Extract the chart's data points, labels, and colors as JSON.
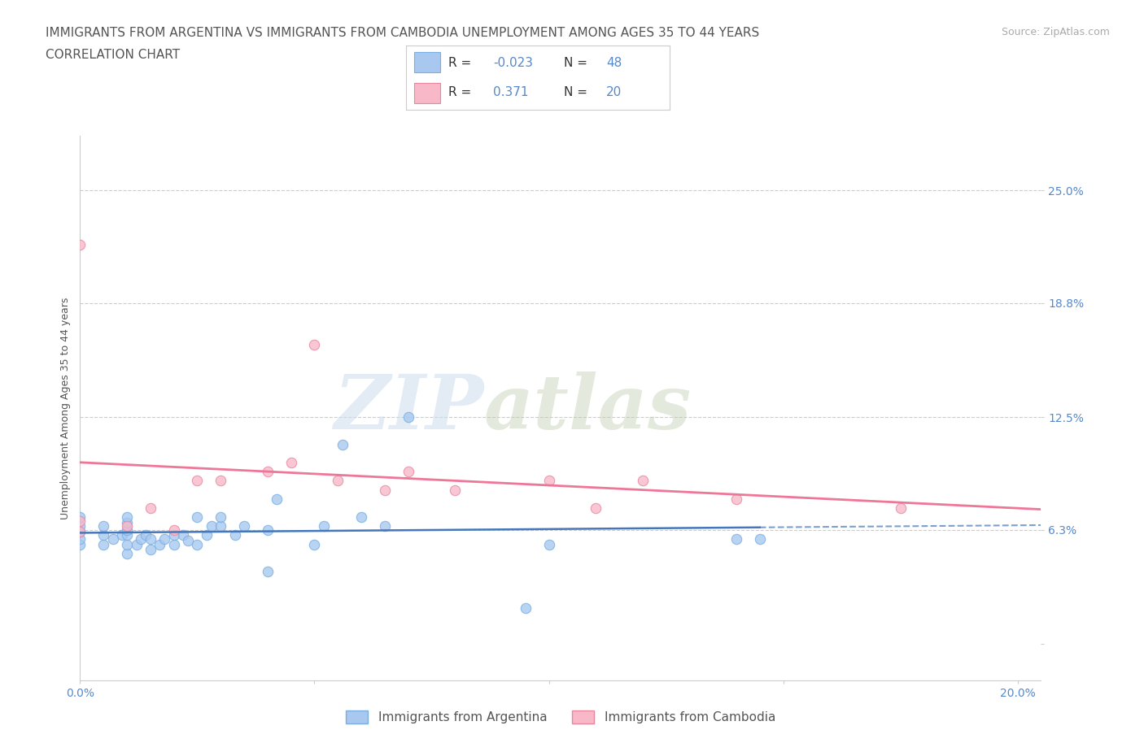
{
  "title_line1": "IMMIGRANTS FROM ARGENTINA VS IMMIGRANTS FROM CAMBODIA UNEMPLOYMENT AMONG AGES 35 TO 44 YEARS",
  "title_line2": "CORRELATION CHART",
  "source": "Source: ZipAtlas.com",
  "ylabel": "Unemployment Among Ages 35 to 44 years",
  "xlim": [
    0.0,
    0.205
  ],
  "ylim": [
    -0.02,
    0.28
  ],
  "yticks": [
    0.0,
    0.063,
    0.125,
    0.188,
    0.25
  ],
  "ytick_labels": [
    "",
    "6.3%",
    "12.5%",
    "18.8%",
    "25.0%"
  ],
  "xticks": [
    0.0,
    0.05,
    0.1,
    0.15,
    0.2
  ],
  "xtick_labels": [
    "0.0%",
    "",
    "",
    "",
    "20.0%"
  ],
  "watermark_zip": "ZIP",
  "watermark_atlas": "atlas",
  "argentina_color": "#a8c8f0",
  "argentina_edge": "#7aaee0",
  "cambodia_color": "#f8b8c8",
  "cambodia_edge": "#e888a0",
  "argentina_line_color": "#4477bb",
  "cambodia_line_color": "#ee7799",
  "R_argentina": "-0.023",
  "N_argentina": "48",
  "R_cambodia": "0.371",
  "N_cambodia": "20",
  "argentina_points_x": [
    0.0,
    0.0,
    0.0,
    0.0,
    0.0,
    0.005,
    0.005,
    0.005,
    0.007,
    0.009,
    0.01,
    0.01,
    0.01,
    0.01,
    0.01,
    0.01,
    0.012,
    0.013,
    0.014,
    0.015,
    0.015,
    0.017,
    0.018,
    0.02,
    0.02,
    0.022,
    0.023,
    0.025,
    0.025,
    0.027,
    0.028,
    0.03,
    0.03,
    0.033,
    0.035,
    0.04,
    0.04,
    0.042,
    0.05,
    0.052,
    0.056,
    0.06,
    0.065,
    0.07,
    0.095,
    0.1,
    0.14,
    0.145
  ],
  "argentina_points_y": [
    0.055,
    0.058,
    0.062,
    0.065,
    0.07,
    0.055,
    0.06,
    0.065,
    0.058,
    0.06,
    0.05,
    0.055,
    0.06,
    0.063,
    0.067,
    0.07,
    0.055,
    0.058,
    0.06,
    0.052,
    0.058,
    0.055,
    0.058,
    0.055,
    0.06,
    0.06,
    0.057,
    0.055,
    0.07,
    0.06,
    0.065,
    0.065,
    0.07,
    0.06,
    0.065,
    0.04,
    0.063,
    0.08,
    0.055,
    0.065,
    0.11,
    0.07,
    0.065,
    0.125,
    0.02,
    0.055,
    0.058,
    0.058
  ],
  "cambodia_points_x": [
    0.0,
    0.0,
    0.0,
    0.01,
    0.015,
    0.02,
    0.025,
    0.03,
    0.04,
    0.045,
    0.05,
    0.055,
    0.065,
    0.07,
    0.08,
    0.1,
    0.11,
    0.12,
    0.14,
    0.175
  ],
  "cambodia_points_y": [
    0.062,
    0.068,
    0.22,
    0.065,
    0.075,
    0.063,
    0.09,
    0.09,
    0.095,
    0.1,
    0.165,
    0.09,
    0.085,
    0.095,
    0.085,
    0.09,
    0.075,
    0.09,
    0.08,
    0.075
  ],
  "title_fontsize": 11,
  "axis_label_fontsize": 9,
  "tick_fontsize": 10,
  "background_color": "#ffffff",
  "grid_color": "#cccccc",
  "title_color": "#555555",
  "tick_color": "#5588cc",
  "source_color": "#aaaaaa",
  "legend_text_color": "#333333",
  "legend_val_color": "#5588cc"
}
